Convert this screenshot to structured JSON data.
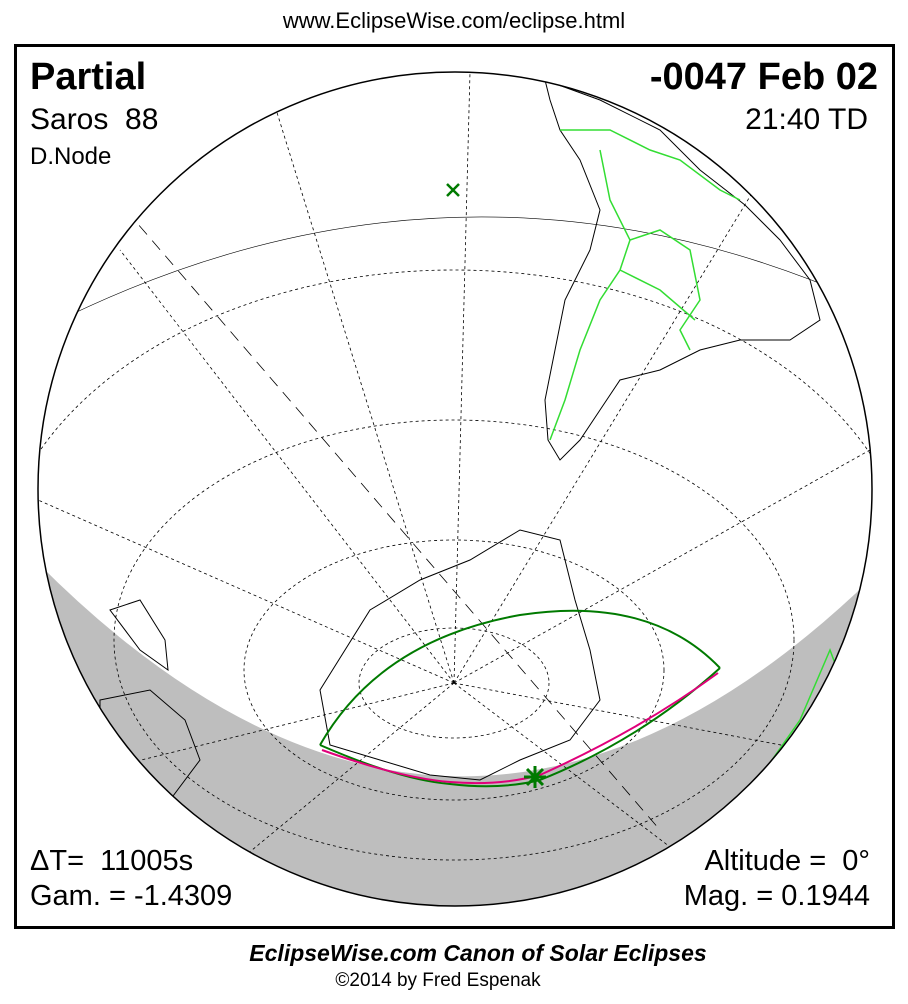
{
  "header": {
    "url": "www.EclipseWise.com/eclipse.html"
  },
  "eclipse": {
    "type": "Partial",
    "saros": "Saros  88",
    "node": "D.Node",
    "date": "-0047 Feb 02",
    "time": "21:40 TD",
    "delta_t": "ΔT=  11005s",
    "gamma": "Gam. = -1.4309",
    "altitude": "Altitude =  0°",
    "magnitude": "Mag. = 0.1944"
  },
  "footer": {
    "title": "EclipseWise.com Canon of Solar Eclipses",
    "copyright": "©2014 by Fred Espenak"
  },
  "colors": {
    "night": "#bebebe",
    "border": "#00e000",
    "path": "#007a00",
    "center_line": "#e0007a"
  }
}
